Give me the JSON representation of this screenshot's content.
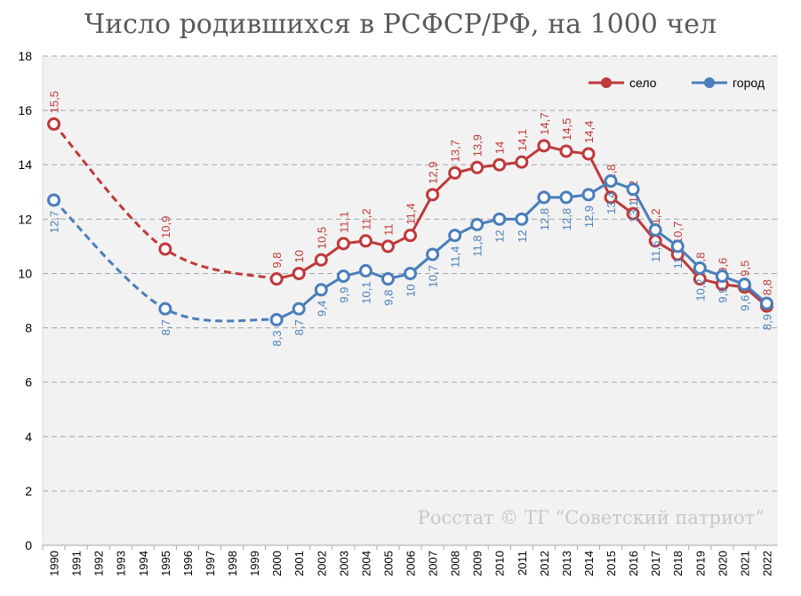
{
  "chart_data": {
    "type": "line",
    "title": "Число родившихся в РСФСР/РФ, на 1000 чел",
    "watermark": "Росстат © ТГ “Советский патриот”",
    "xlabel": "",
    "ylabel": "",
    "ylim": [
      0,
      18
    ],
    "yticks": [
      "0",
      "2",
      "4",
      "6",
      "8",
      "10",
      "12",
      "14",
      "16",
      "18"
    ],
    "categories": [
      "1990",
      "1991",
      "1992",
      "1993",
      "1994",
      "1995",
      "1996",
      "1997",
      "1998",
      "1999",
      "2000",
      "2001",
      "2002",
      "2003",
      "2004",
      "2005",
      "2006",
      "2007",
      "2008",
      "2009",
      "2010",
      "2011",
      "2012",
      "2013",
      "2014",
      "2015",
      "2016",
      "2017",
      "2018",
      "2019",
      "2020",
      "2021",
      "2022"
    ],
    "grid": true,
    "legend_position": "top-right",
    "series": [
      {
        "name": "село",
        "color": "#c0393b",
        "x": [
          "1990",
          "1995",
          "2000",
          "2001",
          "2002",
          "2003",
          "2004",
          "2005",
          "2006",
          "2007",
          "2008",
          "2009",
          "2010",
          "2011",
          "2012",
          "2013",
          "2014",
          "2015",
          "2016",
          "2017",
          "2018",
          "2019",
          "2020",
          "2021",
          "2022"
        ],
        "values": [
          15.5,
          10.9,
          9.8,
          10,
          10.5,
          11.1,
          11.2,
          11,
          11.4,
          12.9,
          13.7,
          13.9,
          14,
          14.1,
          14.7,
          14.5,
          14.4,
          12.8,
          12.2,
          11.2,
          10.7,
          9.8,
          9.6,
          9.5,
          8.8
        ],
        "labels": [
          "15,5",
          "10,9",
          "9,8",
          "10",
          "10,5",
          "11,1",
          "11,2",
          "11",
          "11,4",
          "12,9",
          "13,7",
          "13,9",
          "14",
          "14,1",
          "14,7",
          "14,5",
          "14,4",
          "12,8",
          "12,2",
          "11,2",
          "10,7",
          "9,8",
          "9,6",
          "9,5",
          "8,8"
        ]
      },
      {
        "name": "город",
        "color": "#4a7ebb",
        "x": [
          "1990",
          "1995",
          "2000",
          "2001",
          "2002",
          "2003",
          "2004",
          "2005",
          "2006",
          "2007",
          "2008",
          "2009",
          "2010",
          "2011",
          "2012",
          "2013",
          "2014",
          "2015",
          "2016",
          "2017",
          "2018",
          "2019",
          "2020",
          "2021",
          "2022"
        ],
        "values": [
          12.7,
          8.7,
          8.3,
          8.7,
          9.4,
          9.9,
          10.1,
          9.8,
          10,
          10.7,
          11.4,
          11.8,
          12,
          12,
          12.8,
          12.8,
          12.9,
          13.4,
          13.1,
          11.6,
          11,
          10.2,
          9.9,
          9.6,
          8.9
        ],
        "labels": [
          "12,7",
          "8,7",
          "8,3",
          "8,7",
          "9,4",
          "9,9",
          "10,1",
          "9,8",
          "10",
          "10,7",
          "11,4",
          "11,8",
          "12",
          "12",
          "12,8",
          "12,8",
          "12,9",
          "13,4",
          "13,1",
          "11,6",
          "11",
          "10,2",
          "9,9",
          "9,6",
          "8,9"
        ]
      }
    ]
  }
}
